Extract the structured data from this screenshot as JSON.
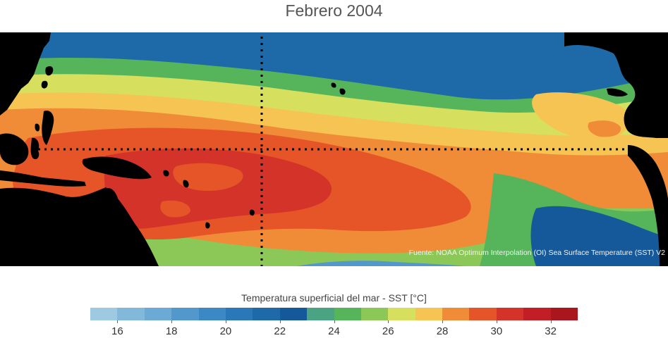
{
  "title": "Febrero 2004",
  "source_note": "Fuente: NOAA Optimum Interpolation (OI) Sea Surface Temperature (SST) V2",
  "colorbar": {
    "title": "Temperatura superficial del mar - SST  [°C]",
    "min": 15,
    "max": 33,
    "step": 1,
    "colors": [
      "#9ecae1",
      "#82b9db",
      "#6aaad5",
      "#5398cc",
      "#3c88c4",
      "#2b78b8",
      "#1e6aa8",
      "#15599a",
      "#4aa382",
      "#56b55a",
      "#8cc858",
      "#d6e05e",
      "#f6c452",
      "#f08b37",
      "#e55527",
      "#d4332a",
      "#c21e26",
      "#a9161e"
    ],
    "tick_labels": [
      "16",
      "18",
      "20",
      "22",
      "24",
      "26",
      "28",
      "30",
      "32"
    ],
    "tick_values": [
      16,
      18,
      20,
      22,
      24,
      26,
      28,
      30,
      32
    ]
  },
  "map": {
    "layers": [
      {
        "name": "sst-band-north-cool",
        "temp": 21
      },
      {
        "name": "sst-band-north-mid",
        "temp": 24
      },
      {
        "name": "sst-band-subtropical",
        "temp": 26
      },
      {
        "name": "sst-band-tropical",
        "temp": 27
      },
      {
        "name": "sst-band-warm",
        "temp": 28
      },
      {
        "name": "sst-warm-pool",
        "temp": 29
      },
      {
        "name": "sst-warm-pool-core",
        "temp": 30
      },
      {
        "name": "sst-south-mid",
        "temp": 25
      },
      {
        "name": "sst-south-cool",
        "temp": 22
      },
      {
        "name": "sst-peru-coast",
        "temp": 24
      }
    ],
    "land_color": "#000000",
    "reference_lines": [
      "equator",
      "dateline"
    ]
  }
}
